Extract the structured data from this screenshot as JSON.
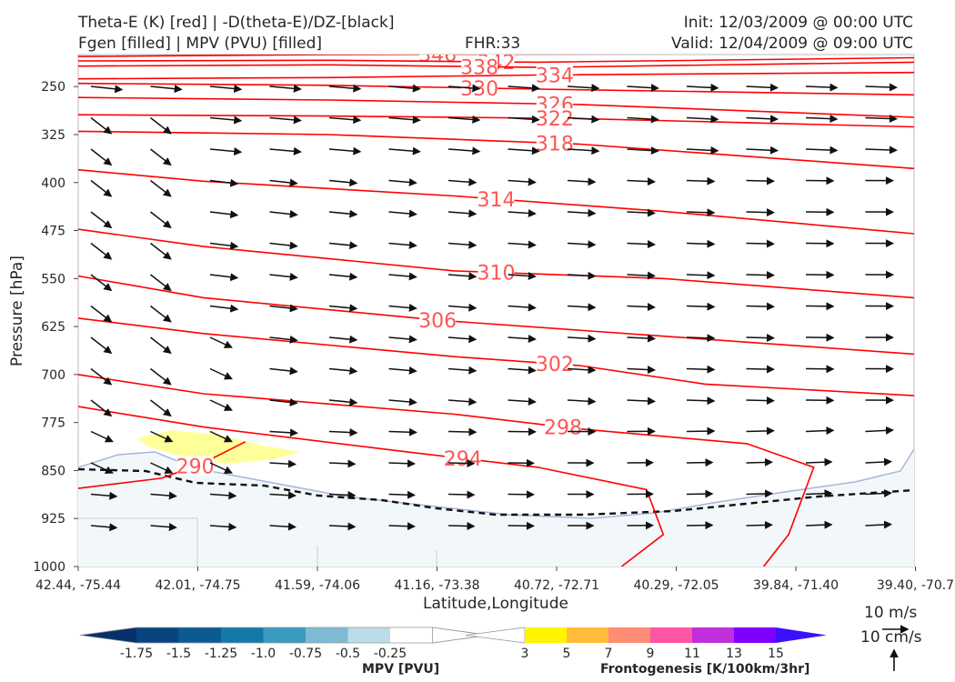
{
  "header": {
    "title_left_1": "Theta-E (K) [red] | -D(theta-E)/DZ-[black]",
    "title_left_2": "Fgen [filled] | MPV (PVU) [filled]",
    "fhr": "FHR:33",
    "init": "Init: 12/03/2009 @ 00:00 UTC",
    "valid": "Valid: 12/04/2009 @ 09:00 UTC"
  },
  "chart_data": {
    "type": "cross-section",
    "xlabel": "Latitude,Longitude",
    "ylabel": "Pressure [hPa]",
    "x_ticks": [
      "42.44, -75.44",
      "42.01, -74.75",
      "41.59, -74.06",
      "41.16, -73.38",
      "40.72, -72.71",
      "40.29, -72.05",
      "39.84, -71.40",
      "39.40, -70.7"
    ],
    "y_ticks": [
      250,
      325,
      400,
      475,
      550,
      625,
      700,
      775,
      850,
      925,
      1000
    ],
    "ylim": [
      1000,
      200
    ],
    "theta_e_contours": [
      {
        "label": "346",
        "values": [
          [
            0,
            203
          ],
          [
            0.3,
            200
          ],
          [
            0.6,
            199
          ],
          [
            1,
            198
          ]
        ]
      },
      {
        "label": "342",
        "values": [
          [
            0,
            210
          ],
          [
            0.3,
            209
          ],
          [
            0.55,
            212
          ],
          [
            1,
            205
          ]
        ]
      },
      {
        "label": "338",
        "values": [
          [
            0,
            218
          ],
          [
            0.3,
            216
          ],
          [
            0.55,
            220
          ],
          [
            1,
            212
          ]
        ]
      },
      {
        "label": "334",
        "values": [
          [
            0,
            238
          ],
          [
            0.3,
            236
          ],
          [
            0.55,
            232
          ],
          [
            1,
            228
          ]
        ]
      },
      {
        "label": "330",
        "values": [
          [
            0,
            245
          ],
          [
            0.3,
            248
          ],
          [
            0.55,
            254
          ],
          [
            1,
            263
          ]
        ]
      },
      {
        "label": "326",
        "values": [
          [
            0,
            267
          ],
          [
            0.3,
            271
          ],
          [
            0.6,
            278
          ],
          [
            1,
            298
          ]
        ]
      },
      {
        "label": "322",
        "values": [
          [
            0,
            294
          ],
          [
            0.3,
            296
          ],
          [
            0.6,
            300
          ],
          [
            1,
            313
          ]
        ]
      },
      {
        "label": "318",
        "values": [
          [
            0,
            320
          ],
          [
            0.3,
            325
          ],
          [
            0.6,
            340
          ],
          [
            1,
            378
          ]
        ]
      },
      {
        "label": "314",
        "values": [
          [
            0,
            380
          ],
          [
            0.15,
            398
          ],
          [
            0.45,
            421
          ],
          [
            0.7,
            445
          ],
          [
            1,
            480
          ]
        ]
      },
      {
        "label": "310",
        "values": [
          [
            0,
            473
          ],
          [
            0.15,
            500
          ],
          [
            0.45,
            538
          ],
          [
            0.7,
            550
          ],
          [
            1,
            580
          ]
        ]
      },
      {
        "label": "306",
        "values": [
          [
            0,
            546
          ],
          [
            0.15,
            580
          ],
          [
            0.43,
            615
          ],
          [
            0.7,
            640
          ],
          [
            1,
            668
          ]
        ]
      },
      {
        "label": "302",
        "values": [
          [
            0,
            612
          ],
          [
            0.15,
            636
          ],
          [
            0.45,
            672
          ],
          [
            0.6,
            686
          ],
          [
            0.75,
            715
          ],
          [
            1,
            733
          ]
        ]
      },
      {
        "label": "298",
        "values": [
          [
            0,
            700
          ],
          [
            0.15,
            730
          ],
          [
            0.45,
            762
          ],
          [
            0.6,
            785
          ],
          [
            0.8,
            808
          ],
          [
            0.88,
            845
          ],
          [
            0.85,
            950
          ],
          [
            0.82,
            1000
          ]
        ]
      },
      {
        "label": "294",
        "values": [
          [
            0,
            750
          ],
          [
            0.15,
            782
          ],
          [
            0.4,
            822
          ],
          [
            0.55,
            845
          ],
          [
            0.68,
            880
          ],
          [
            0.7,
            950
          ],
          [
            0.65,
            1000
          ]
        ]
      },
      {
        "label": "290",
        "values": [
          [
            0,
            878
          ],
          [
            0.1,
            862
          ],
          [
            0.15,
            838
          ],
          [
            0.2,
            805
          ]
        ]
      }
    ],
    "mpv_levels": [
      -1.75,
      -1.5,
      -1.25,
      -1.0,
      -0.75,
      -0.5,
      -0.25
    ],
    "mpv_colors": [
      "#08306b",
      "#08457e",
      "#0b5b91",
      "#137aa8",
      "#3a9ac0",
      "#7ebad4",
      "#bcdce8",
      "#ffffff"
    ],
    "fgen_levels": [
      3,
      5,
      7,
      9,
      11,
      13,
      15
    ],
    "fgen_colors": [
      "#ffffff",
      "#fff500",
      "#ffbd3b",
      "#ff8c74",
      "#ff56a3",
      "#c02fd9",
      "#8000ff",
      "#3a10ff"
    ]
  },
  "colorbars": {
    "mpv_label": "MPV [PVU]",
    "fgen_label": "Frontogenesis [K/100km/3hr]",
    "mpv_ticks": [
      "-1.75",
      "-1.5",
      "-1.25",
      "-1.0",
      "-0.75",
      "-0.5",
      "-0.25"
    ],
    "fgen_ticks": [
      "3",
      "5",
      "7",
      "9",
      "11",
      "13",
      "15"
    ]
  },
  "reference": {
    "horizontal": "10 m/s",
    "vertical": "10 cm/s"
  }
}
